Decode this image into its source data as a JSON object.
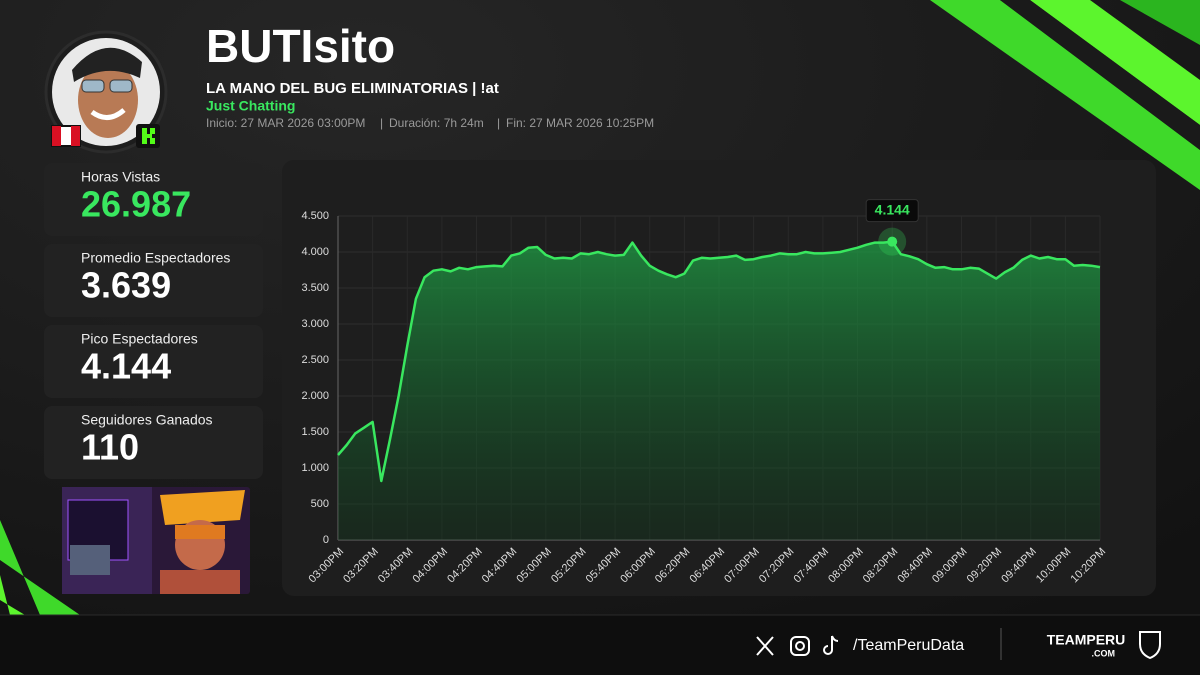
{
  "header": {
    "name": "BUTIsito",
    "stream_title": "LA MANO DEL BUG ELIMINATORIAS | !at",
    "category": "Just Chatting",
    "start": "Inicio: 27 MAR 2026 03:00PM",
    "duration": "Duración: 7h 24m",
    "end": "Fin: 27 MAR 2026 10:25PM"
  },
  "stats": [
    {
      "label": "Horas Vistas",
      "value": "26.987"
    },
    {
      "label": "Promedio Espectadores",
      "value": "3.639"
    },
    {
      "label": "Pico Espectadores",
      "value": "4.144"
    },
    {
      "label": "Seguidores Ganados",
      "value": "110"
    }
  ],
  "footer": {
    "handle": "/TeamPeruData",
    "brand": "TEAMPERU",
    "brand_suffix": ".COM"
  },
  "chart_data": {
    "type": "area",
    "color": "#39e75f",
    "grid": true,
    "categories": [
      "03:00PM",
      null,
      null,
      null,
      "03:20PM",
      null,
      null,
      null,
      "03:40PM",
      null,
      null,
      null,
      "04:00PM",
      null,
      null,
      null,
      "04:20PM",
      null,
      null,
      null,
      "04:40PM",
      null,
      null,
      null,
      "05:00PM",
      null,
      null,
      null,
      "05:20PM",
      null,
      null,
      null,
      "05:40PM",
      null,
      null,
      null,
      "06:00PM",
      null,
      null,
      null,
      "06:20PM",
      null,
      null,
      null,
      "06:40PM",
      null,
      null,
      null,
      "07:00PM",
      null,
      null,
      null,
      "07:20PM",
      null,
      null,
      null,
      "07:40PM",
      null,
      null,
      null,
      "08:00PM",
      null,
      null,
      null,
      "08:20PM",
      null,
      null,
      null,
      "08:40PM",
      null,
      null,
      null,
      "09:00PM",
      null,
      null,
      null,
      "09:20PM",
      null,
      null,
      null,
      "09:40PM",
      null,
      null,
      null,
      "10:00PM",
      null,
      null,
      null,
      "10:20PM"
    ],
    "values": [
      1180,
      1320,
      1480,
      1560,
      1640,
      820,
      1400,
      2000,
      2700,
      3350,
      3650,
      3740,
      3760,
      3730,
      3780,
      3760,
      3790,
      3800,
      3810,
      3800,
      3950,
      3980,
      4060,
      4070,
      3960,
      3910,
      3920,
      3910,
      3980,
      3970,
      4000,
      3970,
      3950,
      3960,
      4130,
      3950,
      3810,
      3740,
      3690,
      3650,
      3700,
      3880,
      3920,
      3910,
      3920,
      3930,
      3950,
      3890,
      3900,
      3930,
      3950,
      3980,
      3970,
      3970,
      4000,
      3980,
      3980,
      3990,
      4000,
      4030,
      4060,
      4100,
      4130,
      4130,
      4144,
      3970,
      3940,
      3900,
      3830,
      3780,
      3790,
      3760,
      3760,
      3780,
      3770,
      3700,
      3630,
      3720,
      3780,
      3890,
      3950,
      3910,
      3930,
      3900,
      3900,
      3810,
      3820,
      3810,
      3790
    ],
    "value_labels": [
      null,
      null,
      null,
      null,
      null,
      null,
      null,
      null,
      null,
      null,
      null,
      null,
      null,
      null,
      null,
      null,
      null,
      null,
      null,
      null,
      null,
      null,
      null,
      null,
      null,
      null,
      null,
      null,
      null,
      null,
      null,
      null,
      null,
      null,
      null,
      null,
      null,
      null,
      null,
      null,
      null,
      null,
      null,
      null,
      null,
      null,
      null,
      null,
      null,
      null,
      null,
      null,
      null,
      null,
      null,
      null,
      null,
      null,
      null,
      null,
      null,
      null,
      null,
      null,
      "4.144",
      null,
      null,
      null,
      null,
      null,
      null,
      null,
      null,
      null,
      null,
      null,
      null,
      null,
      null,
      null,
      null,
      null,
      null,
      null,
      null,
      null,
      null,
      null,
      null
    ],
    "ylim": [
      0,
      4500
    ],
    "yticks": [
      0,
      {
        "value": 500,
        "label": "500"
      },
      {
        "value": 1000,
        "label": "1.000"
      },
      {
        "value": 1500,
        "label": "1.500"
      },
      {
        "value": 2000,
        "label": "2.000"
      },
      {
        "value": 2500,
        "label": "2.500"
      },
      {
        "value": 3000,
        "label": "3.000"
      },
      {
        "value": 3500,
        "label": "3.500"
      },
      {
        "value": 4000,
        "label": "4.000"
      },
      {
        "value": 4500,
        "label": "4.500"
      }
    ]
  }
}
